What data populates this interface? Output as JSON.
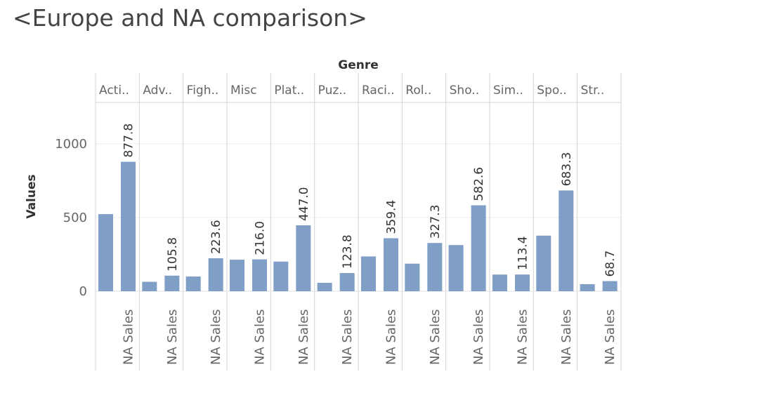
{
  "title": "<Europe and NA comparison>",
  "chart_data": {
    "type": "bar",
    "title": "<Europe and NA comparison>",
    "column_header": "Genre",
    "ylabel": "Values",
    "ylim": [
      0,
      1280
    ],
    "yticks": [
      0,
      500,
      1000
    ],
    "grid": true,
    "series_color": "#7f9fc7",
    "categories": [
      "Acti..",
      "Adv..",
      "Figh..",
      "Misc",
      "Plat..",
      "Puz..",
      "Raci..",
      "Rol..",
      "Sho..",
      "Sim..",
      "Spo..",
      "Str.."
    ],
    "x_label": "NA Sales",
    "series": [
      {
        "values": [
          523,
          64,
          100,
          214,
          201,
          57,
          236,
          187,
          313,
          113,
          377,
          48
        ]
      },
      {
        "values": [
          877.8,
          105.8,
          223.6,
          216.0,
          447.0,
          123.8,
          359.4,
          327.3,
          582.6,
          113.4,
          683.3,
          68.7
        ],
        "labels": [
          "877.8",
          "105.8",
          "223.6",
          "216.0",
          "447.0",
          "123.8",
          "359.4",
          "327.3",
          "582.6",
          "113.4",
          "683.3",
          "68.7"
        ]
      }
    ]
  }
}
